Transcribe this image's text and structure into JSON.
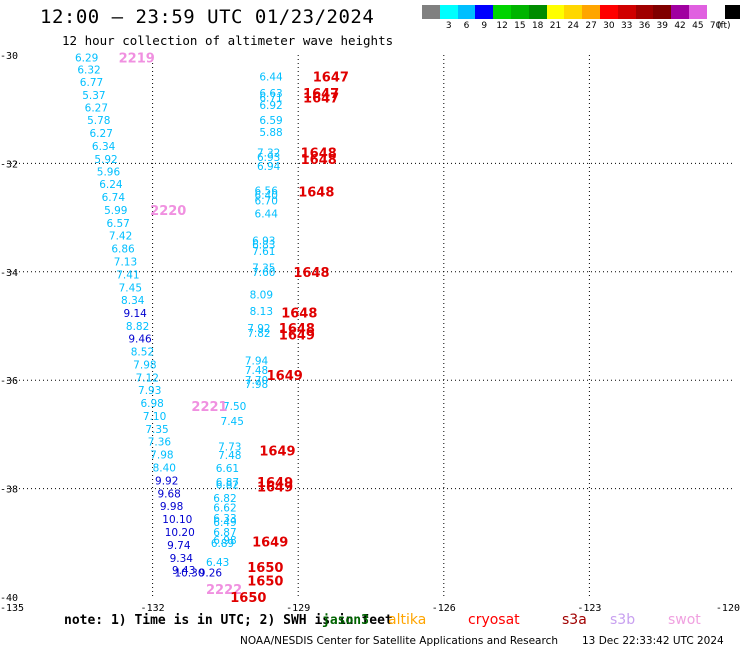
{
  "title": "12:00 — 23:59 UTC 01/23/2024",
  "subtitle": "12 hour collection of altimeter wave heights",
  "legend": {
    "colors": [
      "#808080",
      "#00ffff",
      "#00bfff",
      "#0000ff",
      "#00d400",
      "#00b400",
      "#008c00",
      "#ffff00",
      "#ffd700",
      "#ffa500",
      "#ff0000",
      "#d00000",
      "#a00000",
      "#800000",
      "#a000a0",
      "#e060e0",
      "#ffffff",
      "#000000"
    ],
    "labels": [
      "",
      "3",
      "6",
      "9",
      "12",
      "15",
      "18",
      "21",
      "24",
      "27",
      "30",
      "33",
      "36",
      "39",
      "42",
      "45",
      "70",
      ""
    ],
    "unit": "(ft)"
  },
  "note_a": "note: 1) Time is in UTC; 2) SWH is in feet",
  "note_b": "jason3",
  "satellites": [
    {
      "name": "altika",
      "color": "#ffa500"
    },
    {
      "name": "cryosat",
      "color": "#ff0000"
    },
    {
      "name": "s3a",
      "color": "#a00000"
    },
    {
      "name": "s3b",
      "color": "#c8a0f0"
    },
    {
      "name": "swot",
      "color": "#f0a0e0"
    }
  ],
  "credit": "NOAA/NESDIS Center for Satellite Applications and Research",
  "stamp": "13 Dec 22:33:42 UTC 2024",
  "chart_data": {
    "type": "scatter",
    "title": "12 hour collection of altimeter wave heights",
    "xlim": [
      -135,
      -120
    ],
    "ylim": [
      -40,
      -30
    ],
    "xticks": [
      "-135",
      "-132",
      "-129",
      "-126",
      "-123",
      "-120"
    ],
    "yticks": [
      "-30",
      "-32",
      "-34",
      "-36",
      "-38",
      "-40"
    ],
    "xtick_values": [
      -135,
      -132,
      -129,
      -126,
      -123,
      -120
    ],
    "ytick_values": [
      -30,
      -32,
      -34,
      -36,
      -38,
      -40
    ],
    "grid": true,
    "colors": {
      "cyan": "#00bfff",
      "blue": "#0000d0",
      "jason": "#006400",
      "cryosat": "#e00000",
      "swot": "#f090e0"
    },
    "wave_points": [
      {
        "x": -133.6,
        "y": -30.05,
        "v": "6.29",
        "c": "cyan"
      },
      {
        "x": -133.55,
        "y": -30.27,
        "v": "6.32",
        "c": "cyan"
      },
      {
        "x": -133.5,
        "y": -30.5,
        "v": "6.77",
        "c": "cyan"
      },
      {
        "x": -133.45,
        "y": -30.74,
        "v": "5.37",
        "c": "cyan"
      },
      {
        "x": -133.4,
        "y": -30.97,
        "v": "6.27",
        "c": "cyan"
      },
      {
        "x": -133.35,
        "y": -31.2,
        "v": "5.78",
        "c": "cyan"
      },
      {
        "x": -133.3,
        "y": -31.44,
        "v": "6.27",
        "c": "cyan"
      },
      {
        "x": -133.25,
        "y": -31.68,
        "v": "6.34",
        "c": "cyan"
      },
      {
        "x": -133.2,
        "y": -31.92,
        "v": "5.92",
        "c": "cyan"
      },
      {
        "x": -133.15,
        "y": -32.15,
        "v": "5.96",
        "c": "cyan"
      },
      {
        "x": -133.1,
        "y": -32.38,
        "v": "6.24",
        "c": "cyan"
      },
      {
        "x": -133.05,
        "y": -32.62,
        "v": "6.74",
        "c": "cyan"
      },
      {
        "x": -133.0,
        "y": -32.86,
        "v": "5.99",
        "c": "cyan"
      },
      {
        "x": -132.95,
        "y": -33.1,
        "v": "6.57",
        "c": "cyan"
      },
      {
        "x": -132.9,
        "y": -33.33,
        "v": "7.42",
        "c": "cyan"
      },
      {
        "x": -132.85,
        "y": -33.57,
        "v": "6.86",
        "c": "cyan"
      },
      {
        "x": -132.8,
        "y": -33.81,
        "v": "7.13",
        "c": "cyan"
      },
      {
        "x": -132.75,
        "y": -34.05,
        "v": "7.41",
        "c": "cyan"
      },
      {
        "x": -132.7,
        "y": -34.29,
        "v": "7.45",
        "c": "cyan"
      },
      {
        "x": -132.65,
        "y": -34.52,
        "v": "8.34",
        "c": "cyan"
      },
      {
        "x": -132.6,
        "y": -34.76,
        "v": "9.14",
        "c": "blue"
      },
      {
        "x": -132.55,
        "y": -35.0,
        "v": "8.82",
        "c": "cyan"
      },
      {
        "x": -132.5,
        "y": -35.23,
        "v": "9.46",
        "c": "blue"
      },
      {
        "x": -132.45,
        "y": -35.47,
        "v": "8.52",
        "c": "cyan"
      },
      {
        "x": -132.4,
        "y": -35.71,
        "v": "7.98",
        "c": "cyan"
      },
      {
        "x": -132.35,
        "y": -35.95,
        "v": "7.12",
        "c": "cyan"
      },
      {
        "x": -132.3,
        "y": -36.18,
        "v": "7.93",
        "c": "cyan"
      },
      {
        "x": -132.25,
        "y": -36.42,
        "v": "6.98",
        "c": "cyan"
      },
      {
        "x": -132.2,
        "y": -36.66,
        "v": "7.10",
        "c": "cyan"
      },
      {
        "x": -132.15,
        "y": -36.9,
        "v": "7.35",
        "c": "cyan"
      },
      {
        "x": -132.1,
        "y": -37.13,
        "v": "7.36",
        "c": "cyan"
      },
      {
        "x": -132.05,
        "y": -37.37,
        "v": "7.98",
        "c": "cyan"
      },
      {
        "x": -132.0,
        "y": -37.61,
        "v": "8.40",
        "c": "cyan"
      },
      {
        "x": -131.95,
        "y": -37.85,
        "v": "9.92",
        "c": "blue"
      },
      {
        "x": -131.9,
        "y": -38.09,
        "v": "9.68",
        "c": "blue"
      },
      {
        "x": -131.85,
        "y": -38.32,
        "v": "9.98",
        "c": "blue"
      },
      {
        "x": -131.8,
        "y": -38.56,
        "v": "10.10",
        "c": "blue"
      },
      {
        "x": -131.75,
        "y": -38.8,
        "v": "10.20",
        "c": "blue"
      },
      {
        "x": -131.7,
        "y": -39.04,
        "v": "9.74",
        "c": "blue"
      },
      {
        "x": -131.65,
        "y": -39.28,
        "v": "9.34",
        "c": "blue"
      },
      {
        "x": -131.6,
        "y": -39.5,
        "v": "9.43",
        "c": "blue"
      },
      {
        "x": -131.55,
        "y": -39.55,
        "v": "10.30",
        "c": "blue"
      },
      {
        "x": -129.8,
        "y": -30.4,
        "v": "6.44",
        "c": "cyan"
      },
      {
        "x": -129.8,
        "y": -30.7,
        "v": "6.63",
        "c": "cyan"
      },
      {
        "x": -129.8,
        "y": -30.78,
        "v": "6.71",
        "c": "cyan"
      },
      {
        "x": -129.8,
        "y": -30.92,
        "v": "6.92",
        "c": "cyan"
      },
      {
        "x": -129.8,
        "y": -31.2,
        "v": "6.59",
        "c": "cyan"
      },
      {
        "x": -129.8,
        "y": -31.42,
        "v": "5.88",
        "c": "cyan"
      },
      {
        "x": -129.85,
        "y": -31.8,
        "v": "7.32",
        "c": "cyan"
      },
      {
        "x": -129.85,
        "y": -31.88,
        "v": "6.93",
        "c": "cyan"
      },
      {
        "x": -129.85,
        "y": -32.05,
        "v": "6.94",
        "c": "cyan"
      },
      {
        "x": -129.9,
        "y": -32.5,
        "v": "6.56",
        "c": "cyan"
      },
      {
        "x": -129.9,
        "y": -32.58,
        "v": "6.40",
        "c": "cyan"
      },
      {
        "x": -129.9,
        "y": -32.68,
        "v": "6.70",
        "c": "cyan"
      },
      {
        "x": -129.9,
        "y": -32.92,
        "v": "6.44",
        "c": "cyan"
      },
      {
        "x": -129.95,
        "y": -33.42,
        "v": "6.93",
        "c": "cyan"
      },
      {
        "x": -129.95,
        "y": -33.5,
        "v": "6.83",
        "c": "cyan"
      },
      {
        "x": -129.95,
        "y": -33.62,
        "v": "7.61",
        "c": "cyan"
      },
      {
        "x": -129.95,
        "y": -33.92,
        "v": "7.35",
        "c": "cyan"
      },
      {
        "x": -129.95,
        "y": -34.0,
        "v": "7.60",
        "c": "cyan"
      },
      {
        "x": -130.0,
        "y": -34.42,
        "v": "8.09",
        "c": "cyan"
      },
      {
        "x": -130.0,
        "y": -34.72,
        "v": "8.13",
        "c": "cyan"
      },
      {
        "x": -130.05,
        "y": -35.04,
        "v": "7.92",
        "c": "cyan"
      },
      {
        "x": -130.05,
        "y": -35.13,
        "v": "7.82",
        "c": "cyan"
      },
      {
        "x": -130.1,
        "y": -35.64,
        "v": "7.94",
        "c": "cyan"
      },
      {
        "x": -130.1,
        "y": -35.81,
        "v": "7.48",
        "c": "cyan"
      },
      {
        "x": -130.1,
        "y": -36.0,
        "v": "7.70",
        "c": "cyan"
      },
      {
        "x": -130.1,
        "y": -36.07,
        "v": "7.98",
        "c": "cyan"
      },
      {
        "x": -130.55,
        "y": -36.48,
        "v": "7.50",
        "c": "cyan"
      },
      {
        "x": -130.6,
        "y": -36.75,
        "v": "7.45",
        "c": "cyan"
      },
      {
        "x": -130.65,
        "y": -37.22,
        "v": "7.73",
        "c": "cyan"
      },
      {
        "x": -130.65,
        "y": -37.38,
        "v": "7.48",
        "c": "cyan"
      },
      {
        "x": -130.7,
        "y": -37.62,
        "v": "6.61",
        "c": "cyan"
      },
      {
        "x": -130.7,
        "y": -37.88,
        "v": "6.87",
        "c": "cyan"
      },
      {
        "x": -130.7,
        "y": -37.92,
        "v": "6.82",
        "c": "cyan"
      },
      {
        "x": -130.75,
        "y": -38.17,
        "v": "6.82",
        "c": "cyan"
      },
      {
        "x": -130.75,
        "y": -38.35,
        "v": "6.62",
        "c": "cyan"
      },
      {
        "x": -130.75,
        "y": -38.54,
        "v": "6.33",
        "c": "cyan"
      },
      {
        "x": -130.75,
        "y": -38.62,
        "v": "6.49",
        "c": "cyan"
      },
      {
        "x": -130.75,
        "y": -38.8,
        "v": "6.87",
        "c": "cyan"
      },
      {
        "x": -130.75,
        "y": -38.95,
        "v": "6.98",
        "c": "cyan"
      },
      {
        "x": -130.8,
        "y": -39.0,
        "v": "6.89",
        "c": "cyan"
      },
      {
        "x": -130.9,
        "y": -39.35,
        "v": "6.43",
        "c": "cyan"
      },
      {
        "x": -131.05,
        "y": -39.55,
        "v": "9.26",
        "c": "blue"
      }
    ],
    "pass_labels": [
      {
        "x": -132.7,
        "y": -30.05,
        "t": "2219",
        "c": "swot"
      },
      {
        "x": -132.05,
        "y": -32.86,
        "t": "2220",
        "c": "swot"
      },
      {
        "x": -131.2,
        "y": -36.48,
        "t": "2221",
        "c": "swot"
      },
      {
        "x": -130.9,
        "y": -39.85,
        "t": "2222",
        "c": "swot"
      },
      {
        "x": -128.7,
        "y": -30.4,
        "t": "1647",
        "c": "cryosat"
      },
      {
        "x": -128.9,
        "y": -30.7,
        "t": "1647",
        "c": "cryosat"
      },
      {
        "x": -128.9,
        "y": -30.78,
        "t": "1647",
        "c": "cryosat"
      },
      {
        "x": -128.95,
        "y": -31.8,
        "t": "1648",
        "c": "cryosat"
      },
      {
        "x": -128.95,
        "y": -31.92,
        "t": "1648",
        "c": "cryosat"
      },
      {
        "x": -129.0,
        "y": -32.52,
        "t": "1648",
        "c": "cryosat"
      },
      {
        "x": -129.1,
        "y": -34.0,
        "t": "1648",
        "c": "cryosat"
      },
      {
        "x": -129.35,
        "y": -34.75,
        "t": "1648",
        "c": "cryosat"
      },
      {
        "x": -129.4,
        "y": -35.04,
        "t": "1648",
        "c": "cryosat"
      },
      {
        "x": -129.4,
        "y": -35.16,
        "t": "1649",
        "c": "cryosat"
      },
      {
        "x": -129.65,
        "y": -35.9,
        "t": "1649",
        "c": "cryosat"
      },
      {
        "x": -129.8,
        "y": -37.3,
        "t": "1649",
        "c": "cryosat"
      },
      {
        "x": -129.85,
        "y": -37.88,
        "t": "1649",
        "c": "cryosat"
      },
      {
        "x": -129.85,
        "y": -37.96,
        "t": "1649",
        "c": "cryosat"
      },
      {
        "x": -129.95,
        "y": -38.98,
        "t": "1649",
        "c": "cryosat"
      },
      {
        "x": -130.05,
        "y": -39.45,
        "t": "1650",
        "c": "cryosat"
      },
      {
        "x": -130.05,
        "y": -39.7,
        "t": "1650",
        "c": "cryosat"
      },
      {
        "x": -130.4,
        "y": -40.0,
        "t": "1650",
        "c": "cryosat"
      }
    ]
  }
}
